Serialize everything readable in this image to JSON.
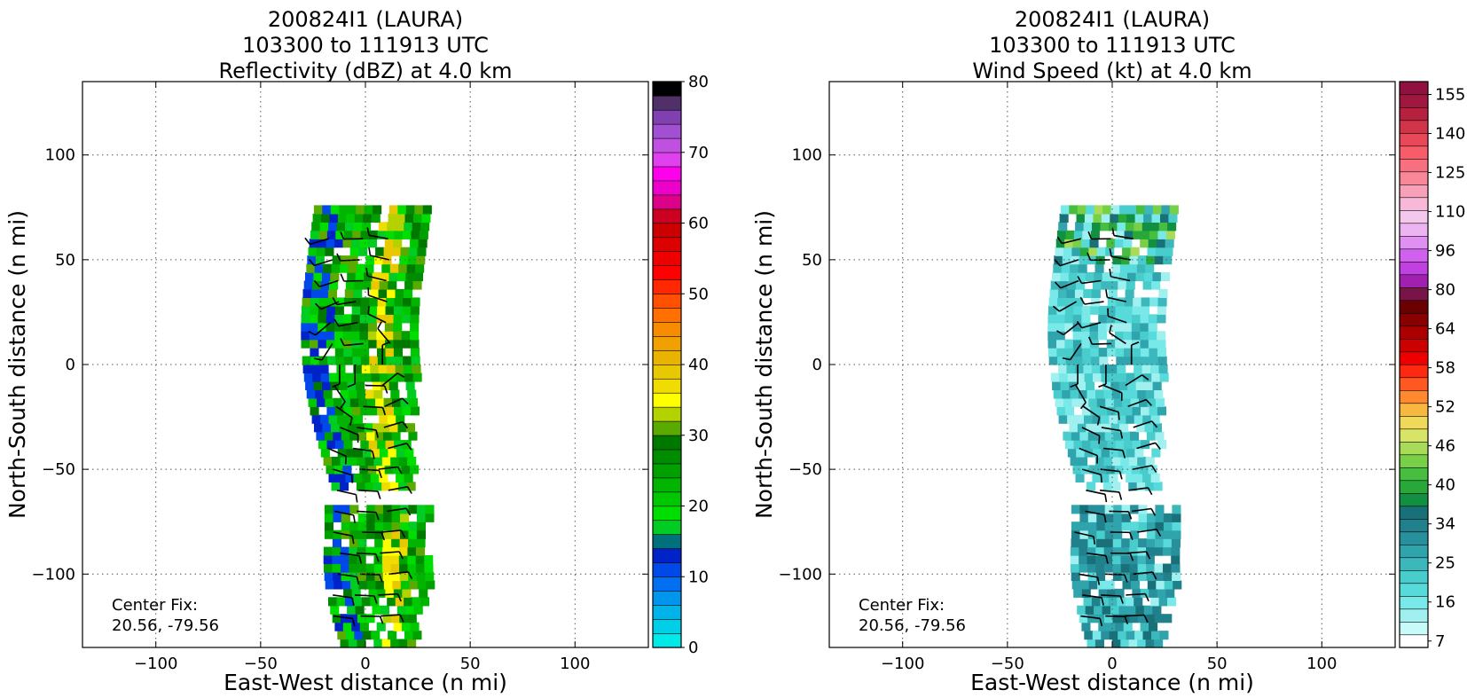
{
  "chart_data": [
    {
      "type": "heatmap",
      "title_lines": [
        "200824I1 (LAURA)",
        "103300 to 111913 UTC",
        "Reflectivity (dBZ) at 4.0 km"
      ],
      "xlabel": "East-West distance (n mi)",
      "ylabel": "North-South distance (n mi)",
      "xlim": [
        -135,
        135
      ],
      "ylim": [
        -135,
        135
      ],
      "xticks": [
        -100,
        -50,
        0,
        50,
        100
      ],
      "yticks": [
        -100,
        -50,
        0,
        50,
        100
      ],
      "xtick_labels": [
        "−100",
        "−50",
        "0",
        "50",
        "100"
      ],
      "ytick_labels": [
        "−100",
        "−50",
        "0",
        "50",
        "100"
      ],
      "grid": true,
      "annotation": [
        "Center Fix:",
        "20.56, -79.56"
      ],
      "colorbar": {
        "min": 0,
        "max": 80,
        "ticks": [
          0,
          10,
          20,
          30,
          40,
          50,
          60,
          70,
          80
        ],
        "colors": [
          "#00e8e8",
          "#00cfe8",
          "#00b4ea",
          "#0096ee",
          "#0070f0",
          "#0048e8",
          "#0022c8",
          "#00707c",
          "#00cc22",
          "#00dd00",
          "#00c800",
          "#00b400",
          "#00a000",
          "#008c00",
          "#007800",
          "#5aaa00",
          "#b4d200",
          "#ffff00",
          "#f0dc00",
          "#e8c800",
          "#e8b400",
          "#f0a000",
          "#f88c00",
          "#ff7000",
          "#ff5000",
          "#ff2800",
          "#ff0000",
          "#ee0000",
          "#dd0000",
          "#cc0000",
          "#cc0020",
          "#dd0088",
          "#ee00cc",
          "#ff00ee",
          "#e040ee",
          "#c050e0",
          "#a050d0",
          "#8040b0",
          "#503068",
          "#000000"
        ]
      }
    },
    {
      "type": "heatmap",
      "title_lines": [
        "200824I1 (LAURA)",
        "103300 to 111913 UTC",
        "Wind Speed (kt) at 4.0 km"
      ],
      "xlabel": "East-West distance (n mi)",
      "ylabel": "North-South distance (n mi)",
      "xlim": [
        -135,
        135
      ],
      "ylim": [
        -135,
        135
      ],
      "xticks": [
        -100,
        -50,
        0,
        50,
        100
      ],
      "yticks": [
        -100,
        -50,
        0,
        50,
        100
      ],
      "xtick_labels": [
        "−100",
        "−50",
        "0",
        "50",
        "100"
      ],
      "ytick_labels": [
        "−100",
        "−50",
        "0",
        "50",
        "100"
      ],
      "grid": true,
      "annotation": [
        "Center Fix:",
        "20.56, -79.56"
      ],
      "colorbar": {
        "ticks": [
          7,
          16,
          25,
          34,
          40,
          46,
          52,
          58,
          64,
          80,
          96,
          110,
          125,
          140,
          155
        ],
        "colors": [
          "#ffffff",
          "#c8fafa",
          "#a0f0f0",
          "#78e8e8",
          "#58dada",
          "#48cccc",
          "#3cb8bc",
          "#30a4ac",
          "#28909c",
          "#20808c",
          "#187078",
          "#109040",
          "#28a838",
          "#48be40",
          "#78d048",
          "#a8dc58",
          "#d8e468",
          "#f0d858",
          "#f8b840",
          "#ff8830",
          "#ff5820",
          "#ff2810",
          "#ee0000",
          "#cc0000",
          "#aa0000",
          "#880000",
          "#6a0000",
          "#781448",
          "#a020b0",
          "#c040e0",
          "#d060ee",
          "#e090f0",
          "#ecb4f0",
          "#f4c8ec",
          "#f8b8d8",
          "#f8a0b8",
          "#f88898",
          "#f87080",
          "#f85c68",
          "#e84858",
          "#d03448",
          "#b82040",
          "#a01840",
          "#901040"
        ]
      }
    }
  ]
}
